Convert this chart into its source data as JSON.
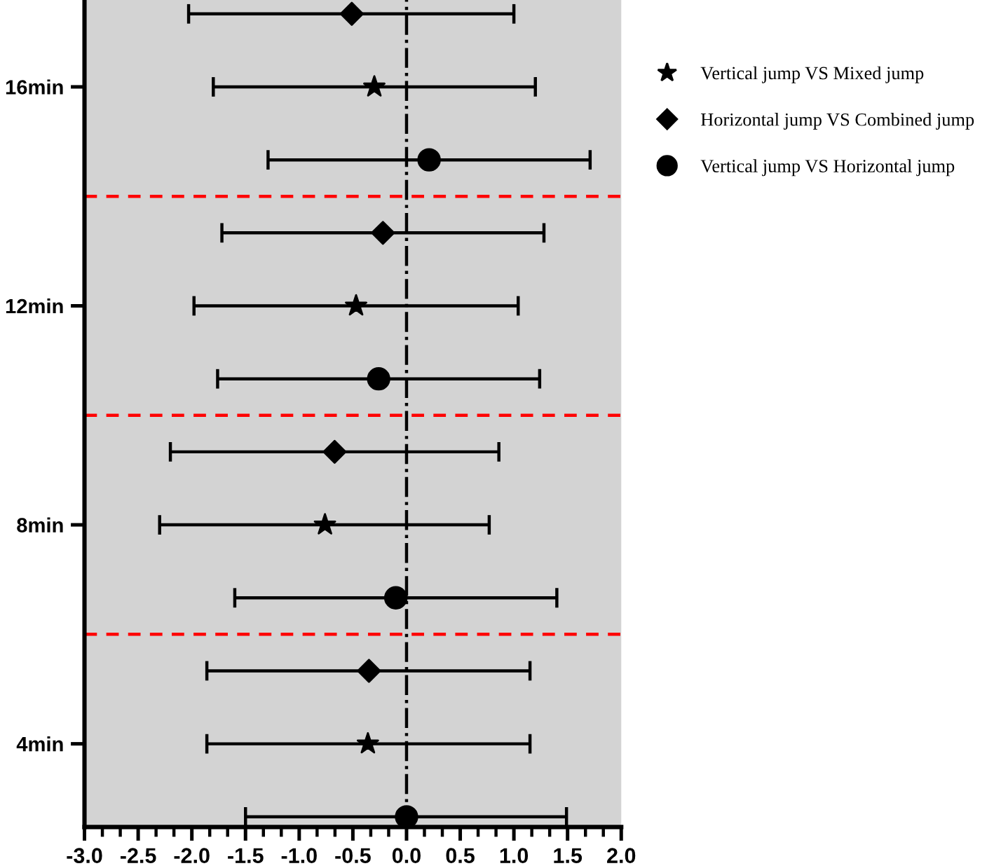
{
  "chart_data": {
    "type": "scatter",
    "orientation": "horizontal",
    "categories": [
      "16min",
      "12min",
      "8min",
      "4min"
    ],
    "xlim": [
      -3.0,
      2.0
    ],
    "xticks": [
      {
        "value": -3.0,
        "label": "-3.0"
      },
      {
        "value": -2.5,
        "label": "-2.5"
      },
      {
        "value": -2.0,
        "label": "-2.0"
      },
      {
        "value": -1.5,
        "label": "-1.5"
      },
      {
        "value": -1.0,
        "label": "-1.0"
      },
      {
        "value": -0.5,
        "label": "-0.5"
      },
      {
        "value": 0.0,
        "label": "0.0"
      },
      {
        "value": 0.5,
        "label": "0.5"
      },
      {
        "value": 1.0,
        "label": "1.0"
      },
      {
        "value": 1.5,
        "label": "1.5"
      },
      {
        "value": 2.0,
        "label": "2.0"
      }
    ],
    "grid": false,
    "legend": "right",
    "series": [
      {
        "name": "Horizontal jump VS Combined jump",
        "color": "#000000",
        "marker": "diamond",
        "values": [
          -0.51,
          -0.22,
          -0.67,
          -0.35
        ],
        "errors": [
          [
            -2.03,
            1.0
          ],
          [
            -1.72,
            1.28
          ],
          [
            -2.2,
            0.86
          ],
          [
            -1.86,
            1.15
          ]
        ]
      },
      {
        "name": "Vertical jump VS Mixed jump",
        "color": "#000000",
        "marker": "star",
        "values": [
          -0.3,
          -0.47,
          -0.76,
          -0.36
        ],
        "errors": [
          [
            -1.8,
            1.2
          ],
          [
            -1.98,
            1.04
          ],
          [
            -2.3,
            0.77
          ],
          [
            -1.86,
            1.15
          ]
        ]
      },
      {
        "name": "Vertical jump VS Horizontal jump",
        "color": "#000000",
        "marker": "circle",
        "values": [
          0.21,
          -0.26,
          -0.1,
          0.0
        ],
        "errors": [
          [
            -1.29,
            1.71
          ],
          [
            -1.76,
            1.24
          ],
          [
            -1.6,
            1.4
          ],
          [
            -1.5,
            1.49
          ]
        ]
      }
    ],
    "ref_lines": [
      {
        "axis": "x",
        "value": 0,
        "color": "#000000",
        "line_style": "dashdot"
      }
    ]
  }
}
